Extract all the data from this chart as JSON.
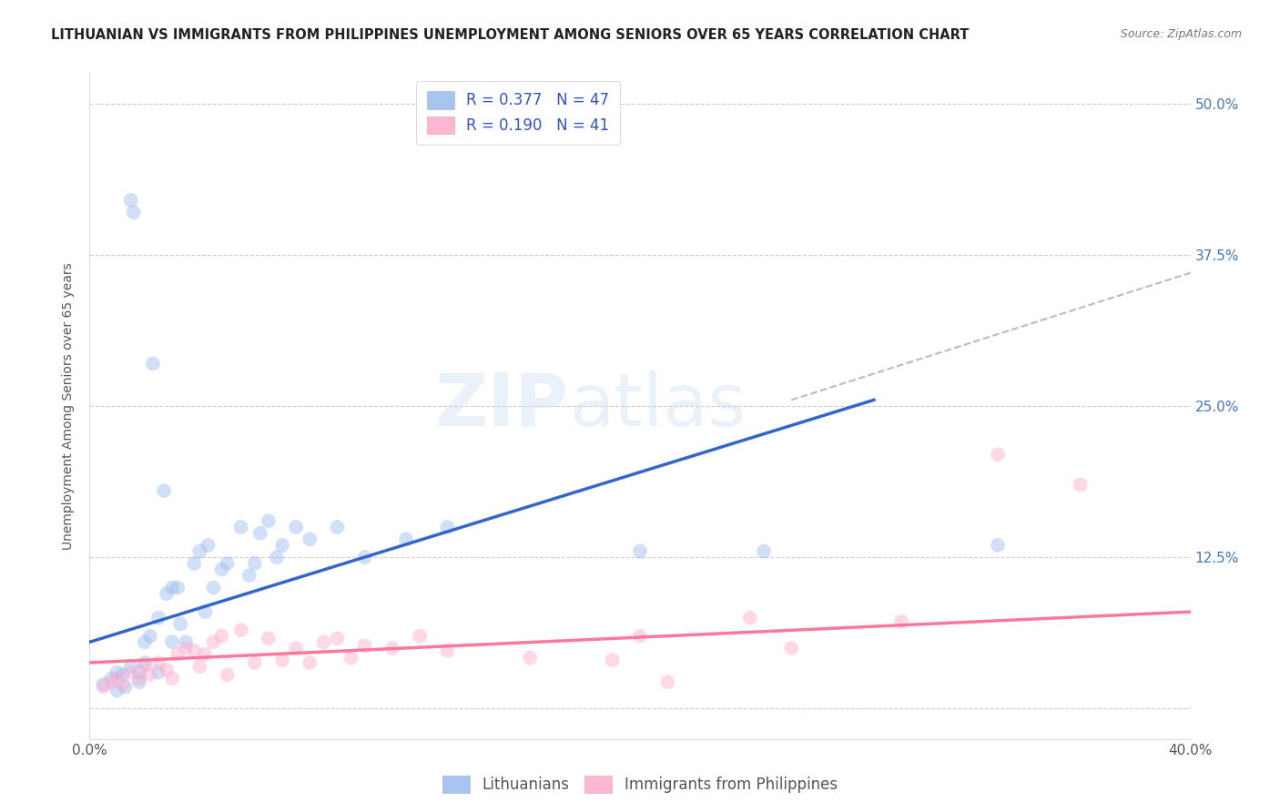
{
  "title": "LITHUANIAN VS IMMIGRANTS FROM PHILIPPINES UNEMPLOYMENT AMONG SENIORS OVER 65 YEARS CORRELATION CHART",
  "source": "Source: ZipAtlas.com",
  "ylabel": "Unemployment Among Seniors over 65 years",
  "xlim": [
    0.0,
    0.4
  ],
  "ylim": [
    -0.025,
    0.525
  ],
  "x_ticks": [
    0.0,
    0.1,
    0.2,
    0.3,
    0.4
  ],
  "x_tick_labels": [
    "0.0%",
    "",
    "",
    "",
    "40.0%"
  ],
  "y_ticks": [
    0.0,
    0.125,
    0.25,
    0.375,
    0.5
  ],
  "y_tick_labels": [
    "",
    "12.5%",
    "25.0%",
    "37.5%",
    "50.0%"
  ],
  "grid_color": "#cccccc",
  "background_color": "#ffffff",
  "watermark1": "ZIP",
  "watermark2": "atlas",
  "legend_R1": "R = 0.377",
  "legend_N1": "N = 47",
  "legend_R2": "R = 0.190",
  "legend_N2": "N = 41",
  "blue_color": "#99BBEE",
  "pink_color": "#FFAACC",
  "blue_line_color": "#3366CC",
  "pink_line_color": "#FF7799",
  "dashed_line_color": "#bbbbbb",
  "title_color": "#222222",
  "source_color": "#777777",
  "legend_text_color": "#3355BB",
  "blue_scatter": [
    [
      0.005,
      0.02
    ],
    [
      0.008,
      0.025
    ],
    [
      0.01,
      0.03
    ],
    [
      0.01,
      0.015
    ],
    [
      0.012,
      0.028
    ],
    [
      0.013,
      0.018
    ],
    [
      0.015,
      0.035
    ],
    [
      0.015,
      0.42
    ],
    [
      0.016,
      0.41
    ],
    [
      0.018,
      0.03
    ],
    [
      0.018,
      0.022
    ],
    [
      0.02,
      0.055
    ],
    [
      0.02,
      0.038
    ],
    [
      0.022,
      0.06
    ],
    [
      0.023,
      0.285
    ],
    [
      0.025,
      0.075
    ],
    [
      0.025,
      0.03
    ],
    [
      0.027,
      0.18
    ],
    [
      0.028,
      0.095
    ],
    [
      0.03,
      0.1
    ],
    [
      0.03,
      0.055
    ],
    [
      0.032,
      0.1
    ],
    [
      0.033,
      0.07
    ],
    [
      0.035,
      0.055
    ],
    [
      0.038,
      0.12
    ],
    [
      0.04,
      0.13
    ],
    [
      0.042,
      0.08
    ],
    [
      0.043,
      0.135
    ],
    [
      0.045,
      0.1
    ],
    [
      0.048,
      0.115
    ],
    [
      0.05,
      0.12
    ],
    [
      0.055,
      0.15
    ],
    [
      0.058,
      0.11
    ],
    [
      0.06,
      0.12
    ],
    [
      0.062,
      0.145
    ],
    [
      0.065,
      0.155
    ],
    [
      0.068,
      0.125
    ],
    [
      0.07,
      0.135
    ],
    [
      0.075,
      0.15
    ],
    [
      0.08,
      0.14
    ],
    [
      0.09,
      0.15
    ],
    [
      0.1,
      0.125
    ],
    [
      0.115,
      0.14
    ],
    [
      0.13,
      0.15
    ],
    [
      0.2,
      0.13
    ],
    [
      0.245,
      0.13
    ],
    [
      0.33,
      0.135
    ]
  ],
  "pink_scatter": [
    [
      0.005,
      0.018
    ],
    [
      0.008,
      0.022
    ],
    [
      0.01,
      0.025
    ],
    [
      0.012,
      0.02
    ],
    [
      0.015,
      0.03
    ],
    [
      0.018,
      0.025
    ],
    [
      0.02,
      0.035
    ],
    [
      0.022,
      0.028
    ],
    [
      0.025,
      0.038
    ],
    [
      0.028,
      0.032
    ],
    [
      0.03,
      0.025
    ],
    [
      0.032,
      0.045
    ],
    [
      0.035,
      0.05
    ],
    [
      0.038,
      0.048
    ],
    [
      0.04,
      0.035
    ],
    [
      0.042,
      0.045
    ],
    [
      0.045,
      0.055
    ],
    [
      0.048,
      0.06
    ],
    [
      0.05,
      0.028
    ],
    [
      0.055,
      0.065
    ],
    [
      0.06,
      0.038
    ],
    [
      0.065,
      0.058
    ],
    [
      0.07,
      0.04
    ],
    [
      0.075,
      0.05
    ],
    [
      0.08,
      0.038
    ],
    [
      0.085,
      0.055
    ],
    [
      0.09,
      0.058
    ],
    [
      0.095,
      0.042
    ],
    [
      0.1,
      0.052
    ],
    [
      0.11,
      0.05
    ],
    [
      0.12,
      0.06
    ],
    [
      0.13,
      0.048
    ],
    [
      0.16,
      0.042
    ],
    [
      0.19,
      0.04
    ],
    [
      0.2,
      0.06
    ],
    [
      0.21,
      0.022
    ],
    [
      0.24,
      0.075
    ],
    [
      0.255,
      0.05
    ],
    [
      0.295,
      0.072
    ],
    [
      0.33,
      0.21
    ],
    [
      0.36,
      0.185
    ]
  ],
  "blue_line": [
    [
      0.0,
      0.055
    ],
    [
      0.285,
      0.255
    ]
  ],
  "pink_line": [
    [
      0.0,
      0.038
    ],
    [
      0.4,
      0.08
    ]
  ],
  "dashed_line": [
    [
      0.255,
      0.255
    ],
    [
      0.4,
      0.36
    ]
  ],
  "marker_size": 130,
  "marker_alpha": 0.45,
  "line_width": 2.5
}
